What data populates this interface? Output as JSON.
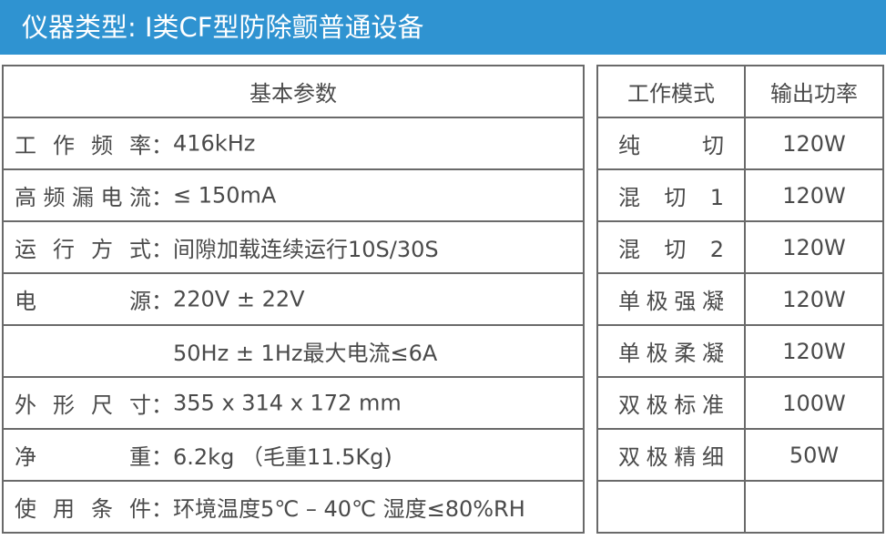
{
  "title": "仪器类型: I类CF型防除颤普通设备",
  "basic": {
    "header": "基本参数",
    "rows": [
      {
        "label": "工作频率",
        "value": "416kHz"
      },
      {
        "label": "高频漏电流",
        "value": "≤ 150mA"
      },
      {
        "label": "运行方式",
        "value": "间隙加载连续运行10S/30S"
      },
      {
        "label": "电源",
        "value": "220V ± 22V"
      },
      {
        "label": "",
        "value": "50Hz ± 1Hz最大电流≤6A"
      },
      {
        "label": "外形尺寸",
        "value": "355 x 314 x 172 mm"
      },
      {
        "label": "净重",
        "value": "6.2kg （毛重11.5Kg)"
      },
      {
        "label": "使用条件",
        "value": "环境温度5℃ – 40℃ 湿度≤80%RH"
      }
    ]
  },
  "modes": {
    "header_mode": "工作模式",
    "header_power": "输出功率",
    "rows": [
      {
        "mode": "纯 切",
        "power": "120W"
      },
      {
        "mode": "混 切 1",
        "power": "120W"
      },
      {
        "mode": "混 切 2",
        "power": "120W"
      },
      {
        "mode": "单极强凝",
        "power": "120W"
      },
      {
        "mode": "单极柔凝",
        "power": "120W"
      },
      {
        "mode": "双极标准",
        "power": "100W"
      },
      {
        "mode": "双极精细",
        "power": "50W"
      },
      {
        "mode": "",
        "power": ""
      }
    ]
  }
}
